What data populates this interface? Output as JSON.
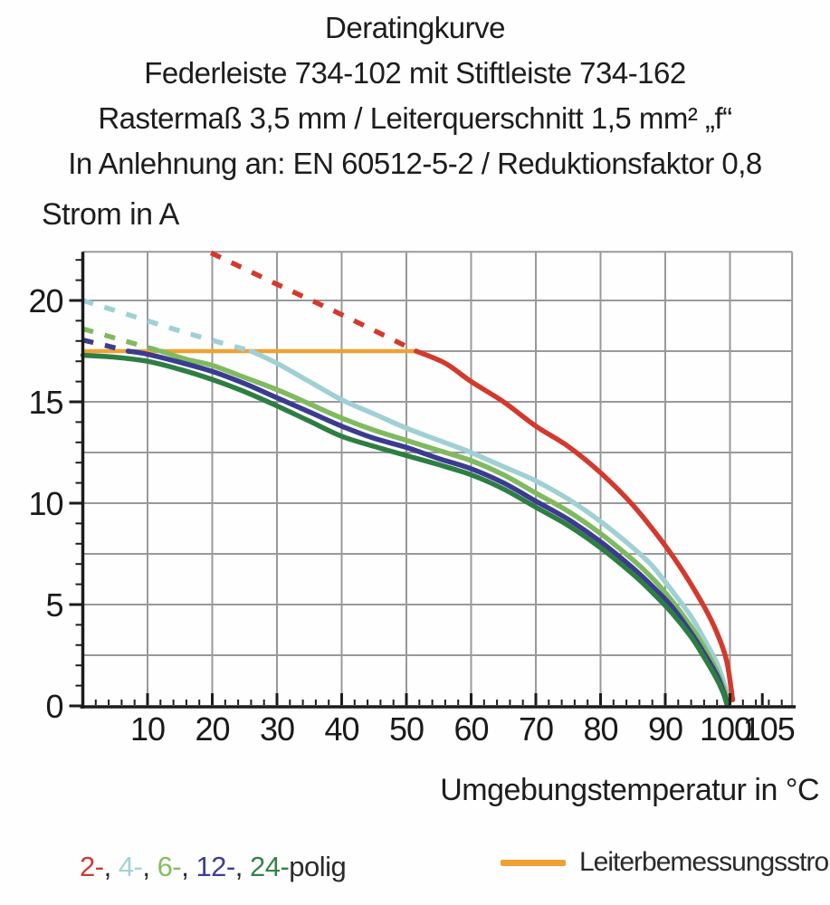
{
  "title": {
    "lines": [
      "Deratingkurve",
      "Federleiste 734-102 mit Stiftleiste 734-162",
      "Rastermaß 3,5 mm / Leiterquerschnitt 1,5 mm² „f“",
      "In Anlehnung an: EN 60512-5-2 / Reduktionsfaktor 0,8"
    ]
  },
  "legend": {
    "poles": [
      {
        "poles": "2",
        "label": "2-",
        "color": "#cd3a30"
      },
      {
        "poles": "4",
        "label": "4-",
        "color": "#a3d2d5"
      },
      {
        "poles": "6",
        "label": "6-",
        "color": "#86bd64"
      },
      {
        "poles": "12",
        "label": "12-",
        "color": "#3f3d94"
      },
      {
        "poles": "24",
        "label": "24-",
        "color": "#35834a"
      }
    ],
    "separator": ", ",
    "suffix": "polig",
    "text_color": "#2a2a2a",
    "reference_label": "Leiterbemessungsstrom",
    "reference_color": "#efa233"
  },
  "chart_data": {
    "type": "line",
    "title": "Deratingkurve",
    "xlabel": "Umgebungstemperatur in °C",
    "ylabel": "Strom in A",
    "xlim": [
      0,
      109.6
    ],
    "ylim": [
      0,
      22.4
    ],
    "x_major_ticks": [
      10,
      20,
      30,
      40,
      50,
      60,
      70,
      80,
      90,
      100,
      105
    ],
    "x_minor_step": 2,
    "y_major_ticks": [
      0,
      5,
      10,
      15,
      20
    ],
    "y_minor_step": 1,
    "grid_x": [
      10,
      20,
      30,
      40,
      50,
      60,
      70,
      80,
      90,
      100
    ],
    "grid_y": [
      2.5,
      5,
      7.5,
      10,
      12.5,
      15,
      17.5,
      20
    ],
    "grid_on": true,
    "grid_color": "#999999",
    "axis_color": "#1c1c1c",
    "tick_label_color": "#1a1a1a",
    "legend_position": "bottom",
    "reference_line": {
      "name": "Leiterbemessungsstrom",
      "color": "#efa233",
      "value_amps": 17.5,
      "x_range": [
        0,
        51.5
      ]
    },
    "series": [
      {
        "name": "4-polig",
        "color": "#a0d0d4",
        "dashed_points": [
          [
            0,
            20.0
          ],
          [
            8,
            19.2
          ],
          [
            16,
            18.4
          ],
          [
            26,
            17.5
          ]
        ],
        "points": [
          [
            26,
            17.5
          ],
          [
            30,
            16.9
          ],
          [
            35,
            16.0
          ],
          [
            40,
            15.1
          ],
          [
            45,
            14.4
          ],
          [
            50,
            13.7
          ],
          [
            55,
            13.1
          ],
          [
            60,
            12.5
          ],
          [
            65,
            11.8
          ],
          [
            70,
            11.1
          ],
          [
            75,
            10.2
          ],
          [
            80,
            9.1
          ],
          [
            85,
            7.8
          ],
          [
            88,
            6.9
          ],
          [
            91,
            5.7
          ],
          [
            94,
            4.4
          ],
          [
            96,
            3.3
          ],
          [
            98,
            2.1
          ],
          [
            99.2,
            1.0
          ],
          [
            99.9,
            0.2
          ]
        ]
      },
      {
        "name": "6-polig",
        "color": "#7fba5f",
        "dashed_points": [
          [
            0,
            18.6
          ],
          [
            6,
            18.05
          ],
          [
            12,
            17.5
          ]
        ],
        "points": [
          [
            12,
            17.5
          ],
          [
            16,
            17.1
          ],
          [
            20,
            16.8
          ],
          [
            25,
            16.2
          ],
          [
            30,
            15.6
          ],
          [
            35,
            14.9
          ],
          [
            40,
            14.2
          ],
          [
            45,
            13.6
          ],
          [
            50,
            13.1
          ],
          [
            55,
            12.6
          ],
          [
            60,
            12.1
          ],
          [
            65,
            11.4
          ],
          [
            70,
            10.5
          ],
          [
            75,
            9.6
          ],
          [
            80,
            8.5
          ],
          [
            85,
            7.2
          ],
          [
            88,
            6.3
          ],
          [
            91,
            5.2
          ],
          [
            94,
            3.9
          ],
          [
            96,
            2.9
          ],
          [
            98,
            1.7
          ],
          [
            99.1,
            0.8
          ],
          [
            99.8,
            0.15
          ]
        ]
      },
      {
        "name": "12-polig",
        "color": "#3b3b92",
        "dashed_points": [
          [
            0,
            18.05
          ],
          [
            3.5,
            17.78
          ],
          [
            7,
            17.5
          ]
        ],
        "points": [
          [
            7,
            17.5
          ],
          [
            10,
            17.35
          ],
          [
            15,
            16.95
          ],
          [
            20,
            16.5
          ],
          [
            25,
            15.9
          ],
          [
            30,
            15.2
          ],
          [
            35,
            14.5
          ],
          [
            40,
            13.8
          ],
          [
            45,
            13.2
          ],
          [
            50,
            12.75
          ],
          [
            55,
            12.2
          ],
          [
            60,
            11.7
          ],
          [
            65,
            11.0
          ],
          [
            70,
            10.1
          ],
          [
            75,
            9.2
          ],
          [
            80,
            8.1
          ],
          [
            85,
            6.8
          ],
          [
            88,
            5.9
          ],
          [
            91,
            4.9
          ],
          [
            94,
            3.6
          ],
          [
            96,
            2.6
          ],
          [
            98,
            1.5
          ],
          [
            99,
            0.7
          ],
          [
            99.6,
            0.1
          ]
        ]
      },
      {
        "name": "24-polig",
        "color": "#2e7e43",
        "dashed_points": [],
        "points": [
          [
            0,
            17.3
          ],
          [
            5,
            17.2
          ],
          [
            10,
            17.0
          ],
          [
            15,
            16.6
          ],
          [
            20,
            16.1
          ],
          [
            25,
            15.5
          ],
          [
            30,
            14.8
          ],
          [
            35,
            14.05
          ],
          [
            40,
            13.3
          ],
          [
            45,
            12.8
          ],
          [
            50,
            12.35
          ],
          [
            55,
            11.9
          ],
          [
            60,
            11.4
          ],
          [
            65,
            10.7
          ],
          [
            70,
            9.8
          ],
          [
            75,
            8.9
          ],
          [
            80,
            7.8
          ],
          [
            85,
            6.5
          ],
          [
            88,
            5.6
          ],
          [
            91,
            4.6
          ],
          [
            94,
            3.4
          ],
          [
            96,
            2.4
          ],
          [
            98,
            1.3
          ],
          [
            99,
            0.6
          ],
          [
            99.5,
            0.1
          ]
        ]
      },
      {
        "name": "2-polig",
        "color": "#d23a2d",
        "dashed_points": [
          [
            19.8,
            22.35
          ],
          [
            30,
            20.8
          ],
          [
            40,
            19.3
          ],
          [
            51.5,
            17.5
          ]
        ],
        "points": [
          [
            51.5,
            17.5
          ],
          [
            56,
            16.9
          ],
          [
            60,
            16.0
          ],
          [
            65,
            15.0
          ],
          [
            70,
            13.8
          ],
          [
            75,
            12.8
          ],
          [
            80,
            11.5
          ],
          [
            85,
            9.9
          ],
          [
            90,
            7.9
          ],
          [
            93,
            6.5
          ],
          [
            96,
            4.9
          ],
          [
            98,
            3.6
          ],
          [
            99.5,
            2.2
          ],
          [
            100.4,
            0.3
          ]
        ]
      }
    ]
  }
}
